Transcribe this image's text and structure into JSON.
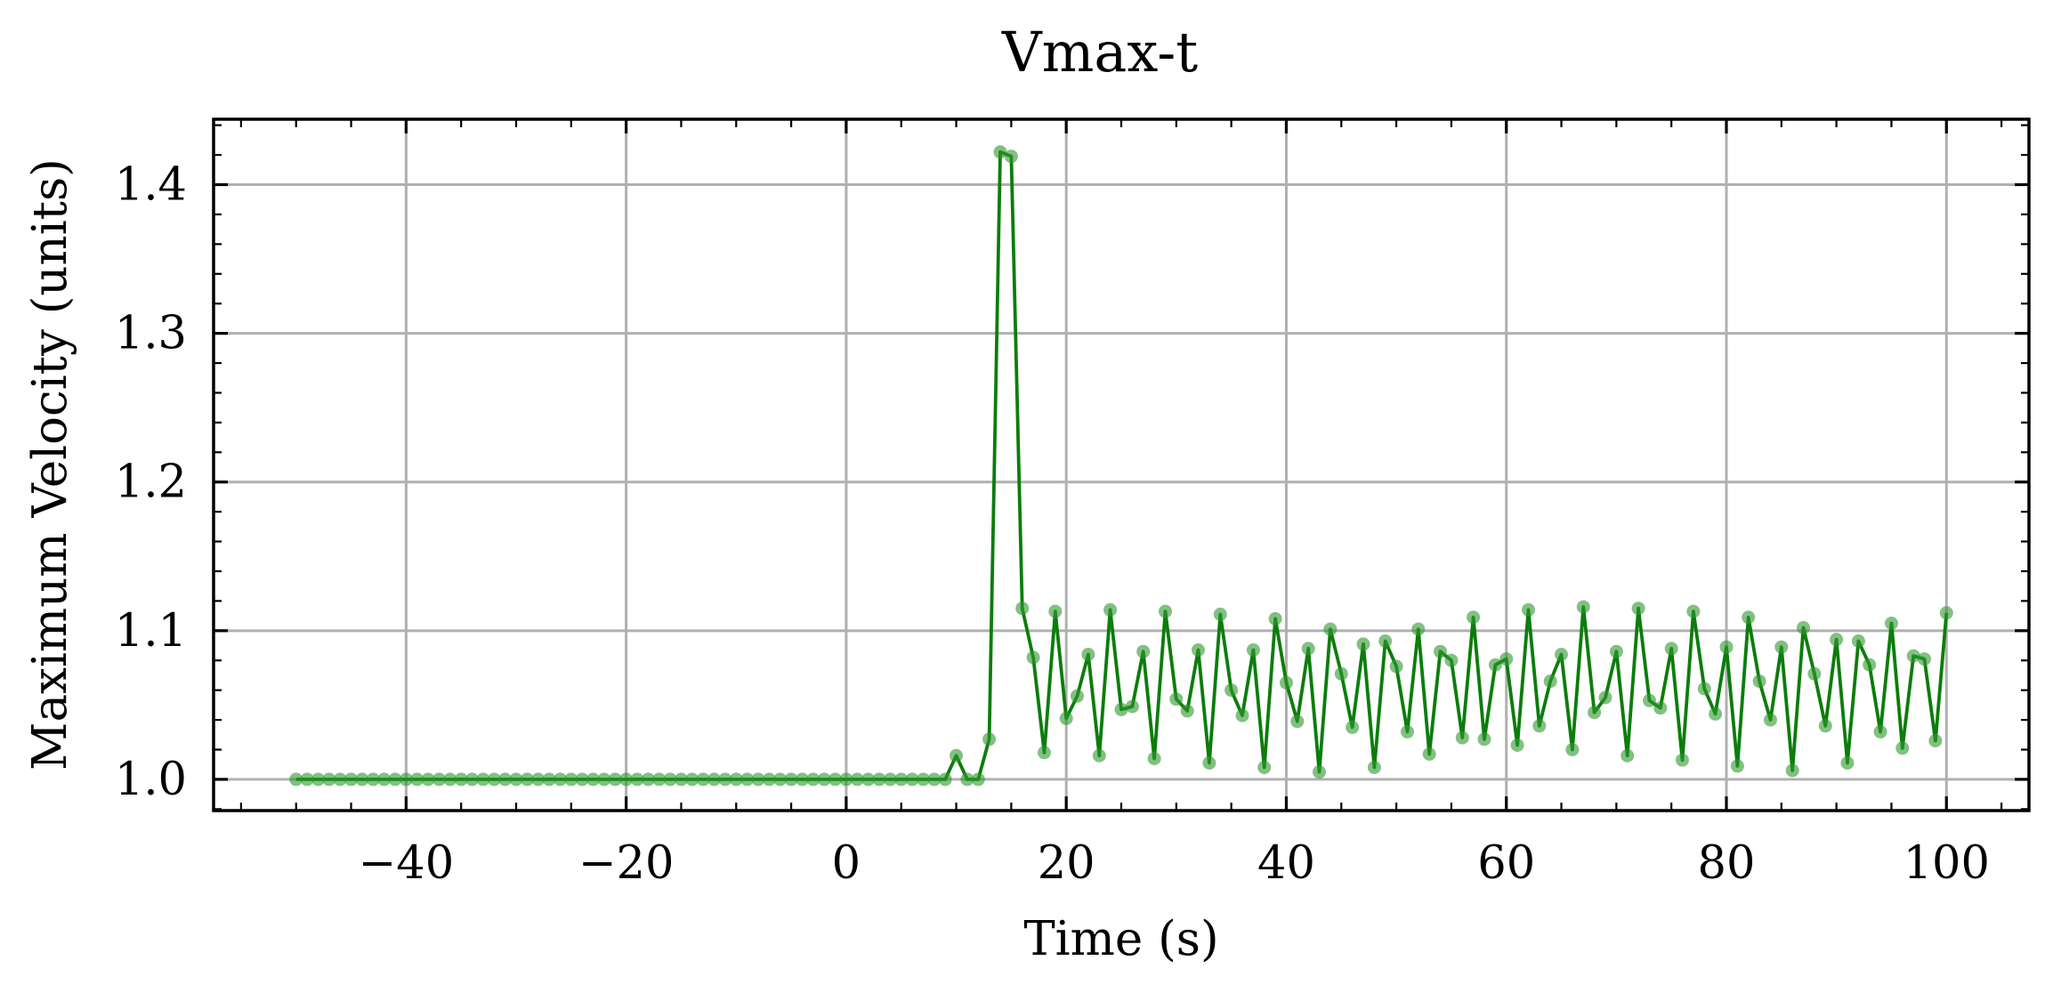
{
  "chart_data": {
    "type": "line",
    "title": "Vmax-t",
    "xlabel": "Time (s)",
    "ylabel": "Maximum Velocity (units)",
    "xlim": [
      -57.5,
      107.5
    ],
    "ylim": [
      0.979,
      1.444
    ],
    "xticks": [
      -40,
      -20,
      0,
      20,
      40,
      60,
      80,
      100
    ],
    "yticks": [
      1.0,
      1.1,
      1.2,
      1.3,
      1.4
    ],
    "xtick_labels": [
      "−40",
      "−20",
      "0",
      "20",
      "40",
      "60",
      "80",
      "100"
    ],
    "ytick_labels": [
      "1.0",
      "1.1",
      "1.2",
      "1.3",
      "1.4"
    ],
    "grid": true,
    "colors": {
      "line": "#0b7d0b",
      "marker": "#2e962e"
    },
    "series": [
      {
        "x": [
          -50,
          -49,
          -48,
          -47,
          -46,
          -45,
          -44,
          -43,
          -42,
          -41,
          -40,
          -39,
          -38,
          -37,
          -36,
          -35,
          -34,
          -33,
          -32,
          -31,
          -30,
          -29,
          -28,
          -27,
          -26,
          -25,
          -24,
          -23,
          -22,
          -21,
          -20,
          -19,
          -18,
          -17,
          -16,
          -15,
          -14,
          -13,
          -12,
          -11,
          -10,
          -9,
          -8,
          -7,
          -6,
          -5,
          -4,
          -3,
          -2,
          -1,
          0,
          1,
          2,
          3,
          4,
          5,
          6,
          7,
          8,
          9,
          10,
          11,
          12,
          13,
          14,
          15,
          16,
          17,
          18,
          19,
          20,
          21,
          22,
          23,
          24,
          25,
          26,
          27,
          28,
          29,
          30,
          31,
          32,
          33,
          34,
          35,
          36,
          37,
          38,
          39,
          40,
          41,
          42,
          43,
          44,
          45,
          46,
          47,
          48,
          49,
          50,
          51,
          52,
          53,
          54,
          55,
          56,
          57,
          58,
          59,
          60,
          61,
          62,
          63,
          64,
          65,
          66,
          67,
          68,
          69,
          70,
          71,
          72,
          73,
          74,
          75,
          76,
          77,
          78,
          79,
          80,
          81,
          82,
          83,
          84,
          85,
          86,
          87,
          88,
          89,
          90,
          91,
          92,
          93,
          94,
          95,
          96,
          97,
          98,
          99,
          100
        ],
        "values": [
          1.0,
          1.0,
          1.0,
          1.0,
          1.0,
          1.0,
          1.0,
          1.0,
          1.0,
          1.0,
          1.0,
          1.0,
          1.0,
          1.0,
          1.0,
          1.0,
          1.0,
          1.0,
          1.0,
          1.0,
          1.0,
          1.0,
          1.0,
          1.0,
          1.0,
          1.0,
          1.0,
          1.0,
          1.0,
          1.0,
          1.0,
          1.0,
          1.0,
          1.0,
          1.0,
          1.0,
          1.0,
          1.0,
          1.0,
          1.0,
          1.0,
          1.0,
          1.0,
          1.0,
          1.0,
          1.0,
          1.0,
          1.0,
          1.0,
          1.0,
          1.0,
          1.0,
          1.0,
          1.0,
          1.0,
          1.0,
          1.0,
          1.0,
          1.0,
          1.0,
          1.016,
          1.0,
          1.0,
          1.027,
          1.422,
          1.419,
          1.115,
          1.082,
          1.018,
          1.113,
          1.041,
          1.056,
          1.084,
          1.016,
          1.114,
          1.047,
          1.049,
          1.086,
          1.014,
          1.113,
          1.054,
          1.046,
          1.087,
          1.011,
          1.111,
          1.06,
          1.043,
          1.087,
          1.008,
          1.108,
          1.065,
          1.039,
          1.088,
          1.005,
          1.101,
          1.071,
          1.035,
          1.091,
          1.008,
          1.093,
          1.076,
          1.032,
          1.101,
          1.017,
          1.086,
          1.08,
          1.028,
          1.109,
          1.027,
          1.077,
          1.081,
          1.023,
          1.114,
          1.036,
          1.066,
          1.084,
          1.02,
          1.116,
          1.045,
          1.055,
          1.086,
          1.016,
          1.115,
          1.053,
          1.048,
          1.088,
          1.013,
          1.113,
          1.061,
          1.044,
          1.089,
          1.009,
          1.109,
          1.066,
          1.04,
          1.089,
          1.006,
          1.102,
          1.071,
          1.036,
          1.094,
          1.011,
          1.093,
          1.077,
          1.032,
          1.105,
          1.021,
          1.083,
          1.081,
          1.026,
          1.112
        ]
      }
    ]
  }
}
